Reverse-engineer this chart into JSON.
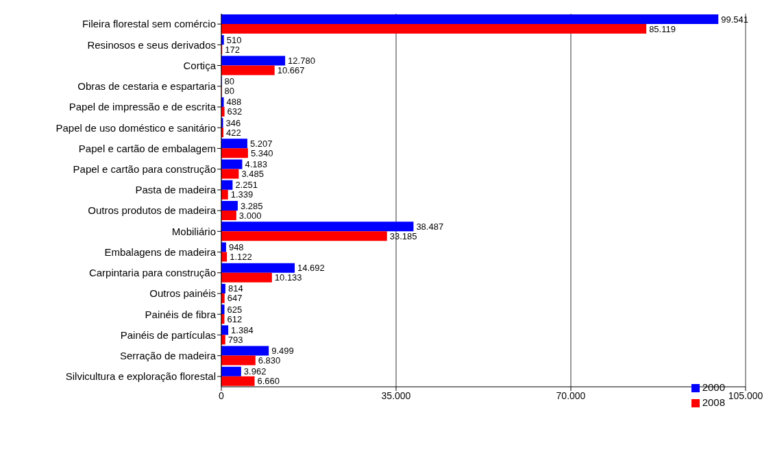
{
  "chart_data": {
    "type": "bar",
    "orientation": "horizontal",
    "categories": [
      "Fileira florestal sem comércio",
      "Resinosos e seus derivados",
      "Cortiça",
      "Obras de cestaria e espartaria",
      "Papel de impressão e de escrita",
      "Papel de uso doméstico e sanitário",
      "Papel e cartão de embalagem",
      "Papel e cartão para construção",
      "Pasta de madeira",
      "Outros produtos de madeira",
      "Mobiliário",
      "Embalagens de madeira",
      "Carpintaria para construção",
      "Outros painéis",
      "Painéis de fibra",
      "Painéis de partículas",
      "Serração de madeira",
      "Silvicultura e exploração florestal"
    ],
    "series": [
      {
        "name": "2000",
        "color": "#0000ff",
        "values": [
          99541,
          510,
          12780,
          80,
          488,
          346,
          5207,
          4183,
          2251,
          3285,
          38487,
          948,
          14692,
          814,
          625,
          1384,
          9499,
          3962
        ],
        "value_labels": [
          "99.541",
          "510",
          "12.780",
          "80",
          "488",
          "346",
          "5.207",
          "4.183",
          "2.251",
          "3.285",
          "38.487",
          "948",
          "14.692",
          "814",
          "625",
          "1.384",
          "9.499",
          "3.962"
        ]
      },
      {
        "name": "2008",
        "color": "#ff0000",
        "values": [
          85119,
          172,
          10667,
          80,
          632,
          422,
          5340,
          3485,
          1339,
          3000,
          33185,
          1122,
          10133,
          647,
          612,
          793,
          6830,
          6660
        ],
        "value_labels": [
          "85.119",
          "172",
          "10.667",
          "80",
          "632",
          "422",
          "5.340",
          "3.485",
          "1.339",
          "3.000",
          "33.185",
          "1.122",
          "10.133",
          "647",
          "612",
          "793",
          "6.830",
          "6.660"
        ]
      }
    ],
    "xlim": [
      0,
      105000
    ],
    "xticks": [
      0,
      {
        "value": 35000,
        "label": "35.000"
      },
      {
        "value": 70000,
        "label": "70.000"
      },
      {
        "value": 105000,
        "label": "105.000"
      }
    ],
    "grid": "x",
    "legend": "bottom right"
  }
}
